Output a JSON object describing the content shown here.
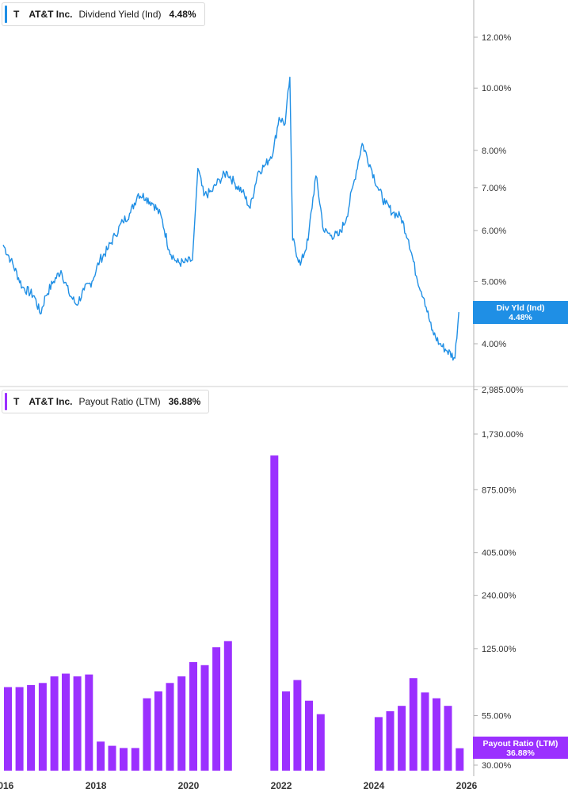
{
  "colors": {
    "yield_line": "#1f8fe5",
    "payout_bar": "#9b30ff",
    "axis_line": "#b0b0b0",
    "divider": "#cfcfcf",
    "tick_text": "#333333"
  },
  "top_legend": {
    "ticker": "T",
    "company": "AT&T Inc.",
    "metric": "Dividend Yield (Ind)",
    "value": "4.48%"
  },
  "bottom_legend": {
    "ticker": "T",
    "company": "AT&T Inc.",
    "metric": "Payout Ratio (LTM)",
    "value": "36.88%"
  },
  "top_flag": {
    "label": "Div Yld (Ind)",
    "value": "4.48%"
  },
  "bottom_flag": {
    "label": "Payout Ratio (LTM)",
    "value": "36.88%"
  },
  "chart_data": [
    {
      "type": "line",
      "name": "Dividend Yield (Ind)",
      "y_scale": "log",
      "y_ticks": [
        {
          "label": "12.00%",
          "value": 12
        },
        {
          "label": "10.00%",
          "value": 10
        },
        {
          "label": "8.00%",
          "value": 8
        },
        {
          "label": "7.00%",
          "value": 7
        },
        {
          "label": "6.00%",
          "value": 6
        },
        {
          "label": "5.00%",
          "value": 5
        },
        {
          "label": "4.00%",
          "value": 4
        }
      ],
      "series": [
        {
          "values_unit": "%",
          "points": [
            [
              "2016-01-01",
              5.7
            ],
            [
              "2016-03-01",
              5.4
            ],
            [
              "2016-06-01",
              4.9
            ],
            [
              "2016-09-01",
              4.75
            ],
            [
              "2016-10-20",
              4.45
            ],
            [
              "2016-12-01",
              4.75
            ],
            [
              "2017-02-01",
              5.0
            ],
            [
              "2017-04-01",
              5.2
            ],
            [
              "2017-06-01",
              4.8
            ],
            [
              "2017-08-01",
              4.6
            ],
            [
              "2017-10-01",
              4.85
            ],
            [
              "2017-12-01",
              5.0
            ],
            [
              "2018-02-01",
              5.4
            ],
            [
              "2018-04-01",
              5.6
            ],
            [
              "2018-06-01",
              5.9
            ],
            [
              "2018-08-01",
              6.2
            ],
            [
              "2018-10-01",
              6.4
            ],
            [
              "2018-12-01",
              6.85
            ],
            [
              "2019-02-01",
              6.75
            ],
            [
              "2019-04-01",
              6.6
            ],
            [
              "2019-06-01",
              6.3
            ],
            [
              "2019-08-01",
              5.6
            ],
            [
              "2019-10-01",
              5.35
            ],
            [
              "2019-12-01",
              5.35
            ],
            [
              "2020-02-01",
              5.4
            ],
            [
              "2020-03-15",
              7.5
            ],
            [
              "2020-05-01",
              6.8
            ],
            [
              "2020-07-01",
              6.9
            ],
            [
              "2020-09-01",
              7.2
            ],
            [
              "2020-11-01",
              7.4
            ],
            [
              "2021-01-01",
              7.1
            ],
            [
              "2021-03-01",
              6.9
            ],
            [
              "2021-05-01",
              6.5
            ],
            [
              "2021-07-01",
              7.4
            ],
            [
              "2021-09-01",
              7.6
            ],
            [
              "2021-11-01",
              8.0
            ],
            [
              "2021-12-15",
              9.0
            ],
            [
              "2022-02-01",
              8.8
            ],
            [
              "2022-03-10",
              10.4
            ],
            [
              "2022-04-01",
              5.8
            ],
            [
              "2022-06-01",
              5.3
            ],
            [
              "2022-08-01",
              5.8
            ],
            [
              "2022-10-01",
              7.3
            ],
            [
              "2022-12-01",
              6.0
            ],
            [
              "2023-02-01",
              5.9
            ],
            [
              "2023-04-01",
              5.9
            ],
            [
              "2023-06-01",
              6.3
            ],
            [
              "2023-08-01",
              7.2
            ],
            [
              "2023-10-01",
              8.2
            ],
            [
              "2023-12-01",
              7.6
            ],
            [
              "2024-02-01",
              7.0
            ],
            [
              "2024-04-01",
              6.6
            ],
            [
              "2024-06-01",
              6.4
            ],
            [
              "2024-08-01",
              6.3
            ],
            [
              "2024-10-01",
              5.8
            ],
            [
              "2024-12-01",
              5.1
            ],
            [
              "2025-02-01",
              4.7
            ],
            [
              "2025-04-01",
              4.2
            ],
            [
              "2025-06-01",
              4.0
            ],
            [
              "2025-08-01",
              3.9
            ],
            [
              "2025-10-01",
              3.8
            ],
            [
              "2025-11-01",
              4.48
            ]
          ]
        }
      ]
    },
    {
      "type": "bar",
      "name": "Payout Ratio (LTM)",
      "y_scale": "log",
      "y_ticks": [
        {
          "label": "2,985.00%",
          "value": 2985
        },
        {
          "label": "1,730.00%",
          "value": 1730
        },
        {
          "label": "875.00%",
          "value": 875
        },
        {
          "label": "405.00%",
          "value": 405
        },
        {
          "label": "240.00%",
          "value": 240
        },
        {
          "label": "125.00%",
          "value": 125
        },
        {
          "label": "55.00%",
          "value": 55
        },
        {
          "label": "30.00%",
          "value": 30
        }
      ],
      "x_labels": [
        "2016",
        "2018",
        "2020",
        "2022",
        "2024",
        "2026"
      ],
      "series": [
        {
          "values_unit": "%",
          "points": [
            [
              "2016-01-01",
              78
            ],
            [
              "2016-04-01",
              78
            ],
            [
              "2016-07-01",
              80
            ],
            [
              "2016-10-01",
              82
            ],
            [
              "2017-01-01",
              89
            ],
            [
              "2017-04-01",
              92
            ],
            [
              "2017-07-01",
              89
            ],
            [
              "2017-10-01",
              91
            ],
            [
              "2018-01-01",
              40
            ],
            [
              "2018-04-01",
              38
            ],
            [
              "2018-07-01",
              37
            ],
            [
              "2018-10-01",
              37
            ],
            [
              "2019-01-01",
              68
            ],
            [
              "2019-04-01",
              74
            ],
            [
              "2019-07-01",
              82
            ],
            [
              "2019-10-01",
              89
            ],
            [
              "2020-01-01",
              106
            ],
            [
              "2020-04-01",
              102
            ],
            [
              "2020-07-01",
              127
            ],
            [
              "2020-10-01",
              137
            ],
            [
              "2021-10-01",
              1330
            ],
            [
              "2022-01-01",
              74
            ],
            [
              "2022-04-01",
              85
            ],
            [
              "2022-07-01",
              66
            ],
            [
              "2022-10-01",
              56
            ],
            [
              "2024-01-01",
              54
            ],
            [
              "2024-04-01",
              58
            ],
            [
              "2024-07-01",
              62
            ],
            [
              "2024-10-01",
              87
            ],
            [
              "2025-01-01",
              73
            ],
            [
              "2025-04-01",
              68
            ],
            [
              "2025-07-01",
              62
            ],
            [
              "2025-10-01",
              36.88
            ]
          ]
        }
      ]
    }
  ]
}
